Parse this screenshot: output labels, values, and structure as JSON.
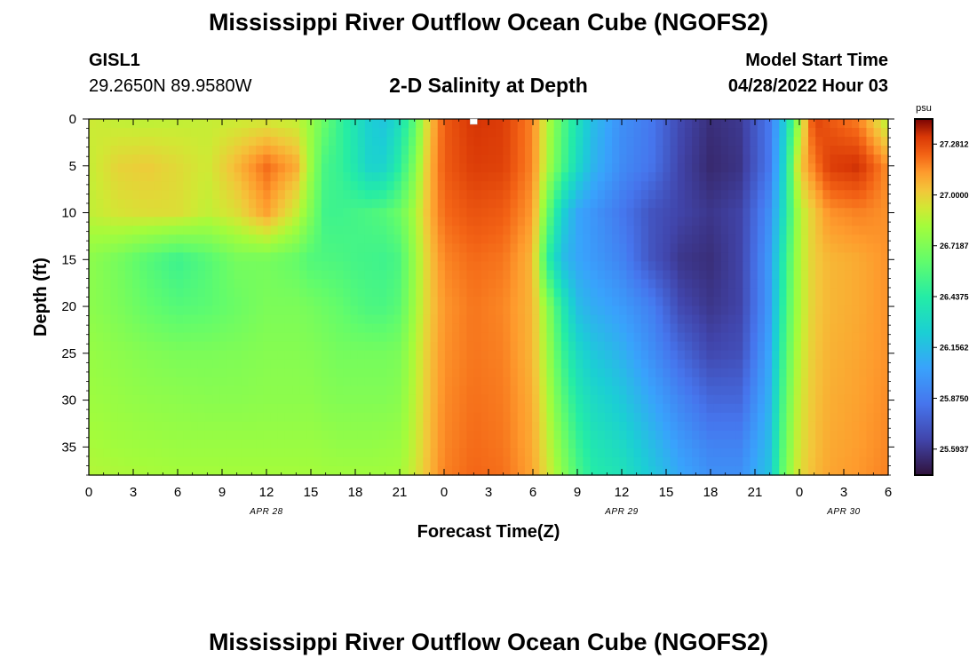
{
  "header": {
    "title": "Mississippi River Outflow Ocean Cube (NGOFS2)",
    "station_name": "GISL1",
    "station_coords": "29.2650N  89.9580W",
    "subtitle": "2-D Salinity at Depth",
    "model_start_label": "Model Start Time",
    "model_start_value": "04/28/2022 Hour 03"
  },
  "footer": {
    "title": "Mississippi River Outflow Ocean Cube (NGOFS2)"
  },
  "chart_data": {
    "type": "heatmap",
    "xlabel": "Forecast Time(Z)",
    "ylabel": "Depth (ft)",
    "xlim": [
      0,
      54
    ],
    "ylim": [
      38,
      0
    ],
    "x_ticks": [
      0,
      3,
      6,
      9,
      12,
      15,
      18,
      21,
      24,
      27,
      30,
      33,
      36,
      39,
      42,
      45,
      48,
      51,
      54
    ],
    "x_tick_labels": [
      "0",
      "3",
      "6",
      "9",
      "12",
      "15",
      "18",
      "21",
      "0",
      "3",
      "6",
      "9",
      "12",
      "15",
      "18",
      "21",
      "0",
      "3",
      "6"
    ],
    "y_ticks": [
      0,
      5,
      10,
      15,
      20,
      25,
      30,
      35
    ],
    "y_tick_labels": [
      "0",
      "5",
      "10",
      "15",
      "20",
      "25",
      "30",
      "35"
    ],
    "date_labels": [
      {
        "label": "APR 28",
        "x": 12
      },
      {
        "label": "APR 29",
        "x": 36
      },
      {
        "label": "APR 30",
        "x": 51
      }
    ],
    "colorbar": {
      "unit": "psu",
      "min": 25.45,
      "max": 27.42,
      "tick_values": [
        27.28125,
        27.0,
        26.71875,
        26.4375,
        26.15625,
        25.875,
        25.59375
      ],
      "tick_labels": [
        "27.2812",
        "27.0000",
        "26.7187",
        "26.4375",
        "26.1562",
        "25.8750",
        "25.5937"
      ]
    },
    "marker": {
      "x": 26,
      "y": 0
    },
    "depths": [
      0,
      5,
      10,
      15,
      20,
      25,
      30,
      35,
      38
    ],
    "times": [
      0,
      2,
      4,
      6,
      8,
      10,
      12,
      14,
      15,
      16,
      17,
      18,
      19,
      20,
      21,
      22,
      23,
      24,
      26,
      28,
      30,
      31,
      32,
      33,
      34,
      36,
      38,
      40,
      42,
      44,
      46,
      47,
      48,
      49,
      50,
      52,
      54
    ],
    "salinity": [
      [
        26.92,
        26.89,
        26.88,
        26.89,
        26.9,
        26.91,
        26.92,
        26.89,
        26.79,
        26.64,
        26.49,
        26.37,
        26.24,
        26.19,
        26.34,
        26.61,
        27.02,
        27.24,
        27.33,
        27.31,
        27.16,
        26.86,
        26.59,
        26.36,
        26.16,
        25.96,
        25.86,
        25.66,
        25.56,
        25.6,
        25.86,
        26.23,
        26.83,
        27.31,
        27.25,
        27.17,
        26.86
      ],
      [
        26.9,
        26.99,
        27.01,
        26.97,
        26.92,
        27.06,
        27.21,
        27.09,
        26.8,
        26.54,
        26.49,
        26.39,
        26.26,
        26.27,
        26.45,
        26.72,
        27.06,
        27.24,
        27.31,
        27.3,
        27.16,
        26.84,
        26.56,
        26.31,
        26.13,
        25.94,
        25.84,
        25.64,
        25.54,
        25.58,
        25.86,
        26.3,
        27.01,
        27.18,
        27.31,
        27.34,
        27.14
      ],
      [
        26.89,
        26.94,
        26.96,
        26.96,
        26.89,
        26.96,
        27.11,
        26.91,
        26.72,
        26.52,
        26.52,
        26.54,
        26.56,
        26.59,
        26.66,
        26.83,
        27.07,
        27.21,
        27.26,
        27.24,
        27.12,
        26.65,
        26.26,
        26.06,
        25.99,
        25.86,
        25.71,
        25.64,
        25.59,
        25.64,
        25.96,
        26.36,
        26.86,
        27.02,
        27.14,
        27.17,
        27.14
      ],
      [
        26.76,
        26.69,
        26.59,
        26.51,
        26.59,
        26.69,
        26.69,
        26.64,
        26.58,
        26.57,
        26.56,
        26.54,
        26.53,
        26.52,
        26.56,
        26.79,
        27.02,
        27.16,
        27.21,
        27.19,
        27.06,
        26.46,
        26.16,
        26.06,
        26.01,
        25.91,
        25.71,
        25.59,
        25.56,
        25.64,
        26.01,
        26.46,
        26.86,
        27.01,
        27.06,
        27.09,
        27.14
      ],
      [
        26.76,
        26.71,
        26.64,
        26.59,
        26.61,
        26.66,
        26.71,
        26.71,
        26.69,
        26.66,
        26.63,
        26.59,
        26.56,
        26.56,
        26.61,
        26.81,
        27.01,
        27.13,
        27.19,
        27.16,
        27.06,
        26.76,
        26.41,
        26.16,
        26.09,
        26.01,
        25.89,
        25.66,
        25.59,
        25.64,
        26.01,
        26.51,
        26.86,
        27.01,
        27.06,
        27.09,
        27.14
      ],
      [
        26.79,
        26.76,
        26.73,
        26.71,
        26.71,
        26.72,
        26.74,
        26.74,
        26.73,
        26.71,
        26.69,
        26.69,
        26.69,
        26.69,
        26.71,
        26.86,
        27.03,
        27.14,
        27.19,
        27.17,
        27.06,
        26.81,
        26.51,
        26.31,
        26.21,
        26.11,
        25.96,
        25.79,
        25.66,
        25.69,
        26.06,
        26.56,
        26.89,
        27.02,
        27.07,
        27.1,
        27.14
      ],
      [
        26.81,
        26.79,
        26.77,
        26.76,
        26.75,
        26.75,
        26.76,
        26.76,
        26.76,
        26.74,
        26.73,
        26.73,
        26.73,
        26.73,
        26.75,
        26.88,
        27.04,
        27.15,
        27.2,
        27.18,
        27.08,
        26.86,
        26.61,
        26.41,
        26.31,
        26.21,
        26.06,
        25.91,
        25.79,
        25.79,
        26.11,
        26.61,
        26.92,
        27.03,
        27.08,
        27.11,
        27.15
      ],
      [
        26.84,
        26.82,
        26.81,
        26.8,
        26.8,
        26.8,
        26.8,
        26.8,
        26.8,
        26.79,
        26.78,
        26.78,
        26.78,
        26.79,
        26.8,
        26.9,
        27.05,
        27.16,
        27.21,
        27.19,
        27.09,
        26.91,
        26.71,
        26.51,
        26.39,
        26.31,
        26.16,
        26.01,
        25.91,
        25.91,
        26.16,
        26.66,
        26.94,
        27.04,
        27.09,
        27.12,
        27.16
      ],
      [
        26.86,
        26.85,
        26.84,
        26.83,
        26.83,
        26.83,
        26.83,
        26.83,
        26.83,
        26.82,
        26.82,
        26.82,
        26.82,
        26.82,
        26.83,
        26.92,
        27.06,
        27.17,
        27.22,
        27.2,
        27.1,
        26.94,
        26.76,
        26.56,
        26.43,
        26.36,
        26.21,
        26.06,
        25.96,
        25.96,
        26.19,
        26.69,
        26.96,
        27.05,
        27.1,
        27.13,
        27.17
      ]
    ]
  }
}
